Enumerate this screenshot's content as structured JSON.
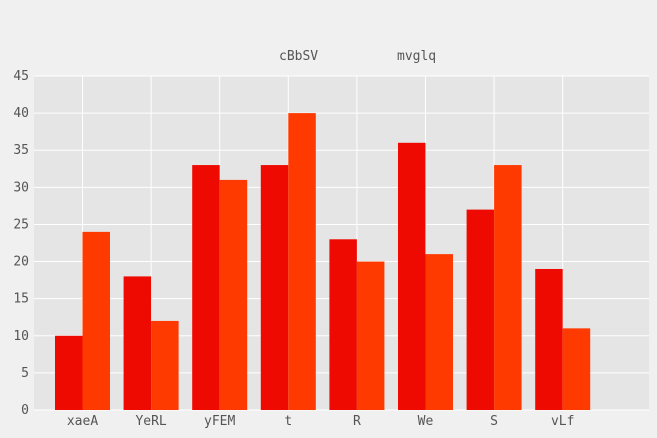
{
  "chart_data": {
    "type": "bar",
    "title": "",
    "xlabel": "",
    "ylabel": "",
    "categories": [
      "xaeA",
      "YeRL",
      "yFEM",
      "t",
      "R",
      "We",
      "S",
      "vLf"
    ],
    "series": [
      {
        "name": "cBbSV",
        "values": [
          10,
          18,
          33,
          33,
          23,
          36,
          27,
          19
        ],
        "color": "#ee0a00"
      },
      {
        "name": "mvglq",
        "values": [
          24,
          12,
          31,
          40,
          20,
          21,
          33,
          11
        ],
        "color": "#ff3a00"
      }
    ],
    "ylim": [
      0,
      45
    ],
    "yticks": [
      0,
      5,
      10,
      15,
      20,
      25,
      30,
      35,
      40,
      45
    ],
    "grid": true,
    "legend_position": "top-center",
    "colors": {
      "background": "#f0f0f0",
      "plot_background": "#e5e5e5",
      "grid": "#ffffff",
      "text": "#555555"
    }
  }
}
